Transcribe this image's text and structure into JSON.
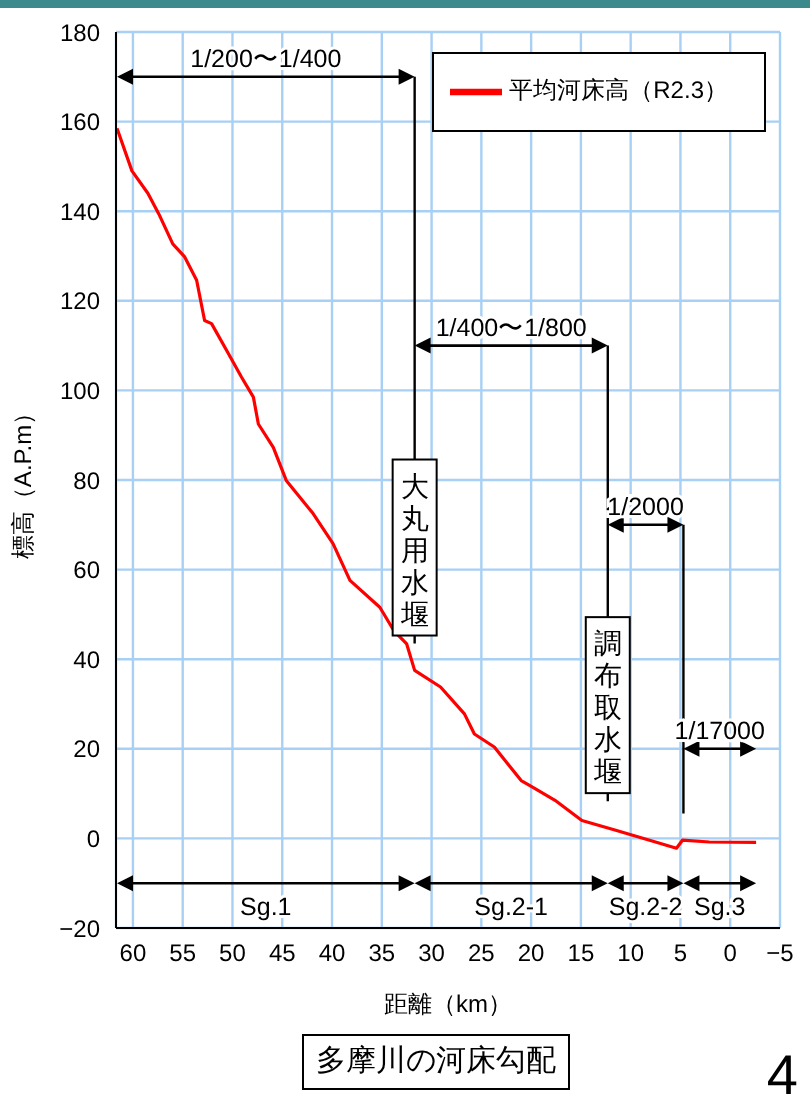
{
  "chart_data": {
    "type": "line",
    "title": "多摩川の河床勾配",
    "xlabel": "距離（km）",
    "ylabel": "標高（A.P.m）",
    "xlim": [
      61.7,
      -5
    ],
    "xticks": [
      60,
      55,
      50,
      45,
      40,
      35,
      30,
      25,
      20,
      15,
      10,
      5,
      0,
      {
        "value": -5,
        "label": "−5"
      }
    ],
    "ylim": [
      -20,
      180
    ],
    "yticks": [
      {
        "value": -20,
        "label": "−20"
      },
      0,
      20,
      40,
      60,
      80,
      100,
      120,
      140,
      160,
      180
    ],
    "grid": true,
    "legend": "top right",
    "series": [
      {
        "name": "平均河床高（R2.3）",
        "color": "#ff0000",
        "x": [
          61.6,
          60.1,
          58.5,
          57.4,
          56,
          54.8,
          53.6,
          52.8,
          52.1,
          50.4,
          49.1,
          47.9,
          47.4,
          45.9,
          44.6,
          41.9,
          39.9,
          38.2,
          35.2,
          33.8,
          32.5,
          31.7,
          29.1,
          26.7,
          25.7,
          23.7,
          21,
          19.9,
          17.6,
          14.9,
          11.5,
          8.1,
          5.4,
          4.8,
          2.1,
          -2.6
        ],
        "values": [
          158.5,
          149,
          144,
          139.4,
          132.7,
          129.8,
          124.6,
          115.6,
          114.9,
          108.2,
          103,
          98.5,
          92.5,
          87.3,
          79.9,
          72.5,
          65.8,
          57.6,
          51.6,
          46.4,
          43.4,
          37.5,
          33.8,
          27.8,
          23.3,
          20.4,
          12.9,
          11.5,
          8.5,
          4,
          1.8,
          -0.4,
          -2.2,
          -0.4,
          -0.8,
          -0.9
        ]
      }
    ],
    "ref_lines": [
      {
        "axis": "x",
        "value": 31.7,
        "label": "大丸用水堰",
        "color": "#000000"
      },
      {
        "axis": "x",
        "value": 12.3,
        "label": "調布取水堰",
        "color": "#000000"
      },
      {
        "axis": "x",
        "value": 4.7,
        "label": null,
        "color": "#000000"
      }
    ],
    "annotations": [
      "1/200〜1/400",
      "1/400〜1/800",
      "1/2000",
      "1/17000",
      "Sg.1",
      "Sg.2-1",
      "Sg.2-2",
      "Sg.3",
      "4"
    ]
  }
}
